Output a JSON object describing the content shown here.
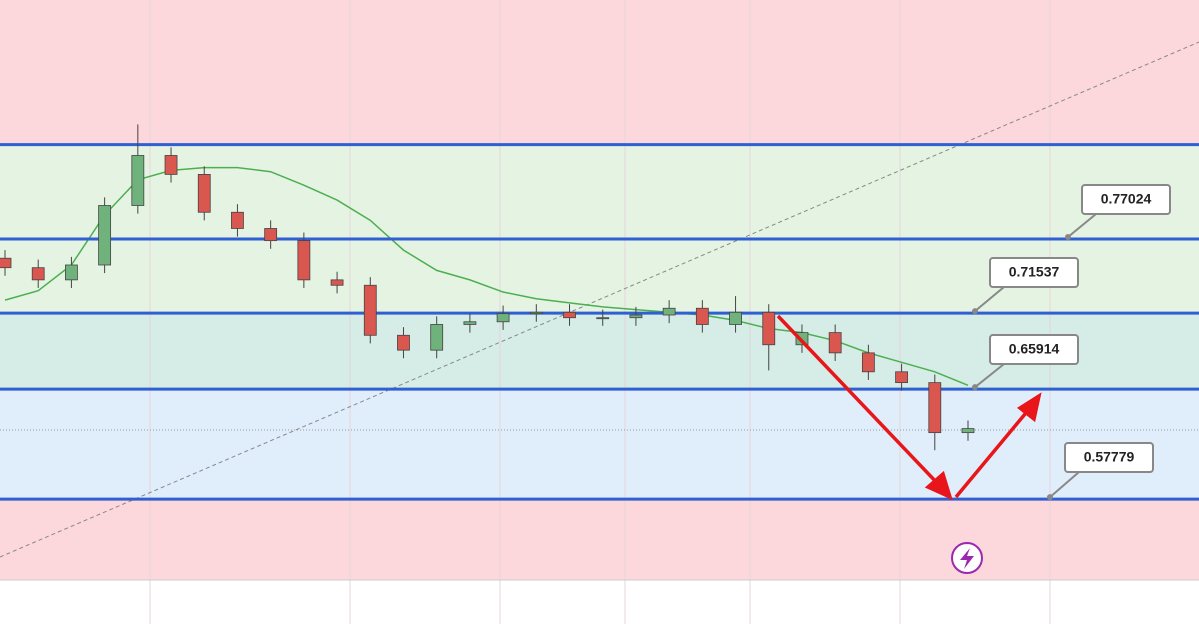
{
  "chart_data": {
    "type": "candlestick",
    "ylim": [
      0.518,
      0.947
    ],
    "upper_level": 0.84,
    "levels": [
      0.77024,
      0.71537,
      0.65914,
      0.57779
    ],
    "series": {
      "open": [
        0.756,
        0.749,
        0.74,
        0.751,
        0.795,
        0.832,
        0.818,
        0.79,
        0.778,
        0.769,
        0.74,
        0.736,
        0.699,
        0.688,
        0.707,
        0.709,
        0.715,
        0.716,
        0.712,
        0.712,
        0.714,
        0.719,
        0.707,
        0.716,
        0.692,
        0.701,
        0.686,
        0.672,
        0.664,
        0.627
      ],
      "high": [
        0.762,
        0.755,
        0.757,
        0.801,
        0.855,
        0.838,
        0.824,
        0.796,
        0.784,
        0.775,
        0.746,
        0.742,
        0.705,
        0.713,
        0.715,
        0.721,
        0.722,
        0.722,
        0.718,
        0.72,
        0.725,
        0.725,
        0.728,
        0.722,
        0.707,
        0.707,
        0.692,
        0.678,
        0.67,
        0.636
      ],
      "low": [
        0.743,
        0.734,
        0.734,
        0.745,
        0.789,
        0.812,
        0.784,
        0.772,
        0.763,
        0.734,
        0.73,
        0.693,
        0.682,
        0.682,
        0.701,
        0.703,
        0.709,
        0.706,
        0.706,
        0.706,
        0.708,
        0.701,
        0.701,
        0.673,
        0.686,
        0.68,
        0.666,
        0.658,
        0.614,
        0.621
      ],
      "close": [
        0.749,
        0.74,
        0.751,
        0.795,
        0.832,
        0.818,
        0.79,
        0.778,
        0.769,
        0.74,
        0.736,
        0.699,
        0.688,
        0.707,
        0.709,
        0.715,
        0.716,
        0.712,
        0.712,
        0.714,
        0.719,
        0.707,
        0.716,
        0.692,
        0.701,
        0.686,
        0.672,
        0.664,
        0.627,
        0.63
      ]
    },
    "moving_average": [
      0.725,
      0.732,
      0.751,
      0.788,
      0.814,
      0.821,
      0.823,
      0.823,
      0.82,
      0.81,
      0.799,
      0.784,
      0.762,
      0.747,
      0.74,
      0.731,
      0.726,
      0.723,
      0.72,
      0.718,
      0.716,
      0.714,
      0.71,
      0.704,
      0.701,
      0.695,
      0.686,
      0.679,
      0.672,
      0.662
    ],
    "up_color": "#6fb27c",
    "down_color": "#d9574f",
    "ma_color": "#4caf50",
    "level_color": "#2f5fd0"
  }
}
